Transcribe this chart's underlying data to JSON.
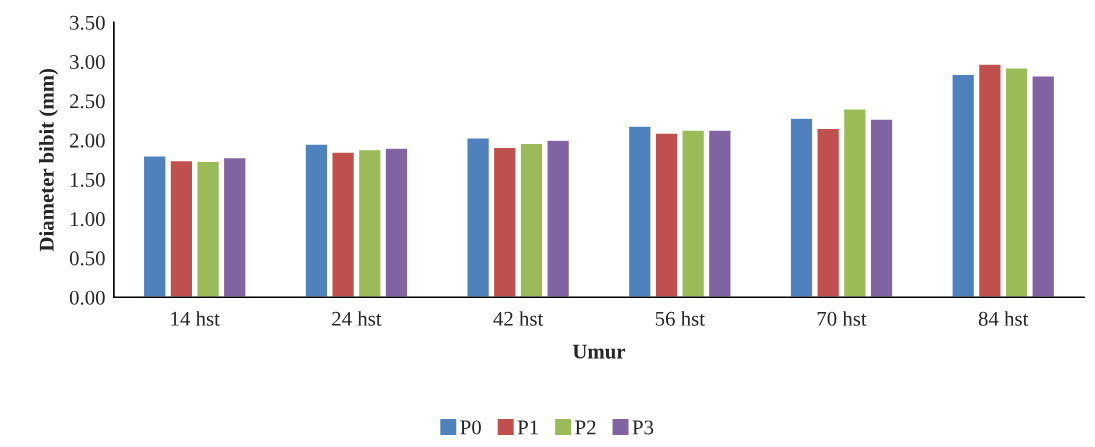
{
  "chart_data": {
    "type": "bar",
    "xlabel": "Umur",
    "ylabel": "Diameter bibit (mm)",
    "categories": [
      "14 hst",
      "24 hst",
      "42 hst",
      "56 hst",
      "70 hst",
      "84 hst"
    ],
    "series": [
      {
        "name": "P0",
        "color": "#4f81bd",
        "values": [
          1.8,
          1.95,
          2.03,
          2.18,
          2.28,
          2.84
        ]
      },
      {
        "name": "P1",
        "color": "#c0504d",
        "values": [
          1.74,
          1.85,
          1.91,
          2.09,
          2.15,
          2.97
        ]
      },
      {
        "name": "P2",
        "color": "#9bbb59",
        "values": [
          1.73,
          1.88,
          1.96,
          2.13,
          2.4,
          2.92
        ]
      },
      {
        "name": "P3",
        "color": "#8064a2",
        "values": [
          1.78,
          1.9,
          2.0,
          2.13,
          2.27,
          2.82
        ]
      }
    ],
    "ylim": [
      0,
      3.5
    ],
    "yticks": [
      {
        "value": 0,
        "label": "0.00"
      },
      {
        "value": 0.5,
        "label": "0.50"
      },
      {
        "value": 1,
        "label": "1.00"
      },
      {
        "value": 1.5,
        "label": "1.50"
      },
      {
        "value": 2,
        "label": "2.00"
      },
      {
        "value": 2.5,
        "label": "2.50"
      },
      {
        "value": 3,
        "label": "3.00"
      },
      {
        "value": 3.5,
        "label": "3.50"
      }
    ],
    "grid": false,
    "legend": "bottom"
  }
}
